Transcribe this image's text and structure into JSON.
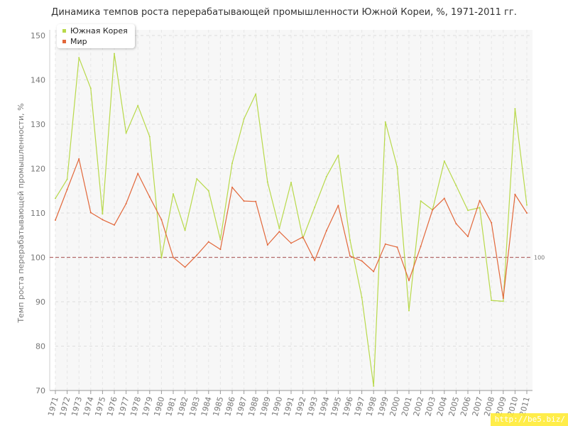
{
  "title": "Динамика темпов роста перерабатывающей промышленности Южной Кореи, %, 1971-2011 гг.",
  "watermark": "http://be5.biz/",
  "chart_data": {
    "type": "line",
    "title": "Динамика темпов роста перерабатывающей промышленности Южной Кореи, %, 1971-2011 гг.",
    "xlabel": "",
    "ylabel": "Темп роста перерабатывающей промышленности, %",
    "ylim": [
      70,
      150
    ],
    "yticks": [
      70,
      80,
      90,
      100,
      110,
      120,
      130,
      140,
      150
    ],
    "grid": true,
    "legend_position": "top-left",
    "reference_line": {
      "value": 100,
      "label": "100",
      "color": "#b36b6b"
    },
    "x": [
      "1971",
      "1972",
      "1973",
      "1974",
      "1975",
      "1976",
      "1977",
      "1978",
      "1979",
      "1980",
      "1981",
      "1982",
      "1983",
      "1984",
      "1985",
      "1986",
      "1987",
      "1988",
      "1989",
      "1990",
      "1991",
      "1992",
      "1993",
      "1994",
      "1995",
      "1996",
      "1997",
      "1998",
      "1999",
      "2000",
      "2001",
      "2002",
      "2003",
      "2004",
      "2005",
      "2006",
      "2007",
      "2008",
      "2009",
      "2010",
      "2011"
    ],
    "series": [
      {
        "name": "Южная Корея",
        "color": "#b8d94a",
        "values": [
          113.3,
          117.6,
          145.0,
          138.1,
          109.8,
          145.9,
          128.0,
          134.2,
          127.2,
          99.9,
          114.3,
          106.1,
          117.7,
          115.0,
          104.0,
          121.2,
          131.2,
          136.8,
          117.0,
          106.5,
          116.9,
          104.3,
          111.3,
          118.2,
          123.0,
          103.9,
          91.0,
          71.0,
          130.5,
          120.4,
          88.0,
          112.7,
          110.7,
          121.7,
          116.2,
          110.6,
          111.2,
          90.3,
          90.1,
          133.5,
          111.8
        ]
      },
      {
        "name": "Мир",
        "color": "#e2673a",
        "values": [
          108.4,
          115.3,
          122.2,
          110.1,
          108.5,
          107.3,
          112.1,
          118.9,
          113.6,
          108.5,
          100.0,
          97.8,
          100.5,
          103.5,
          101.8,
          115.8,
          112.7,
          112.6,
          102.8,
          105.8,
          103.2,
          104.6,
          99.3,
          106.0,
          111.7,
          100.3,
          99.2,
          96.8,
          103.0,
          102.3,
          94.8,
          102.5,
          110.7,
          113.3,
          107.6,
          104.7,
          112.8,
          107.8,
          90.8,
          114.2,
          110.0
        ]
      }
    ]
  }
}
